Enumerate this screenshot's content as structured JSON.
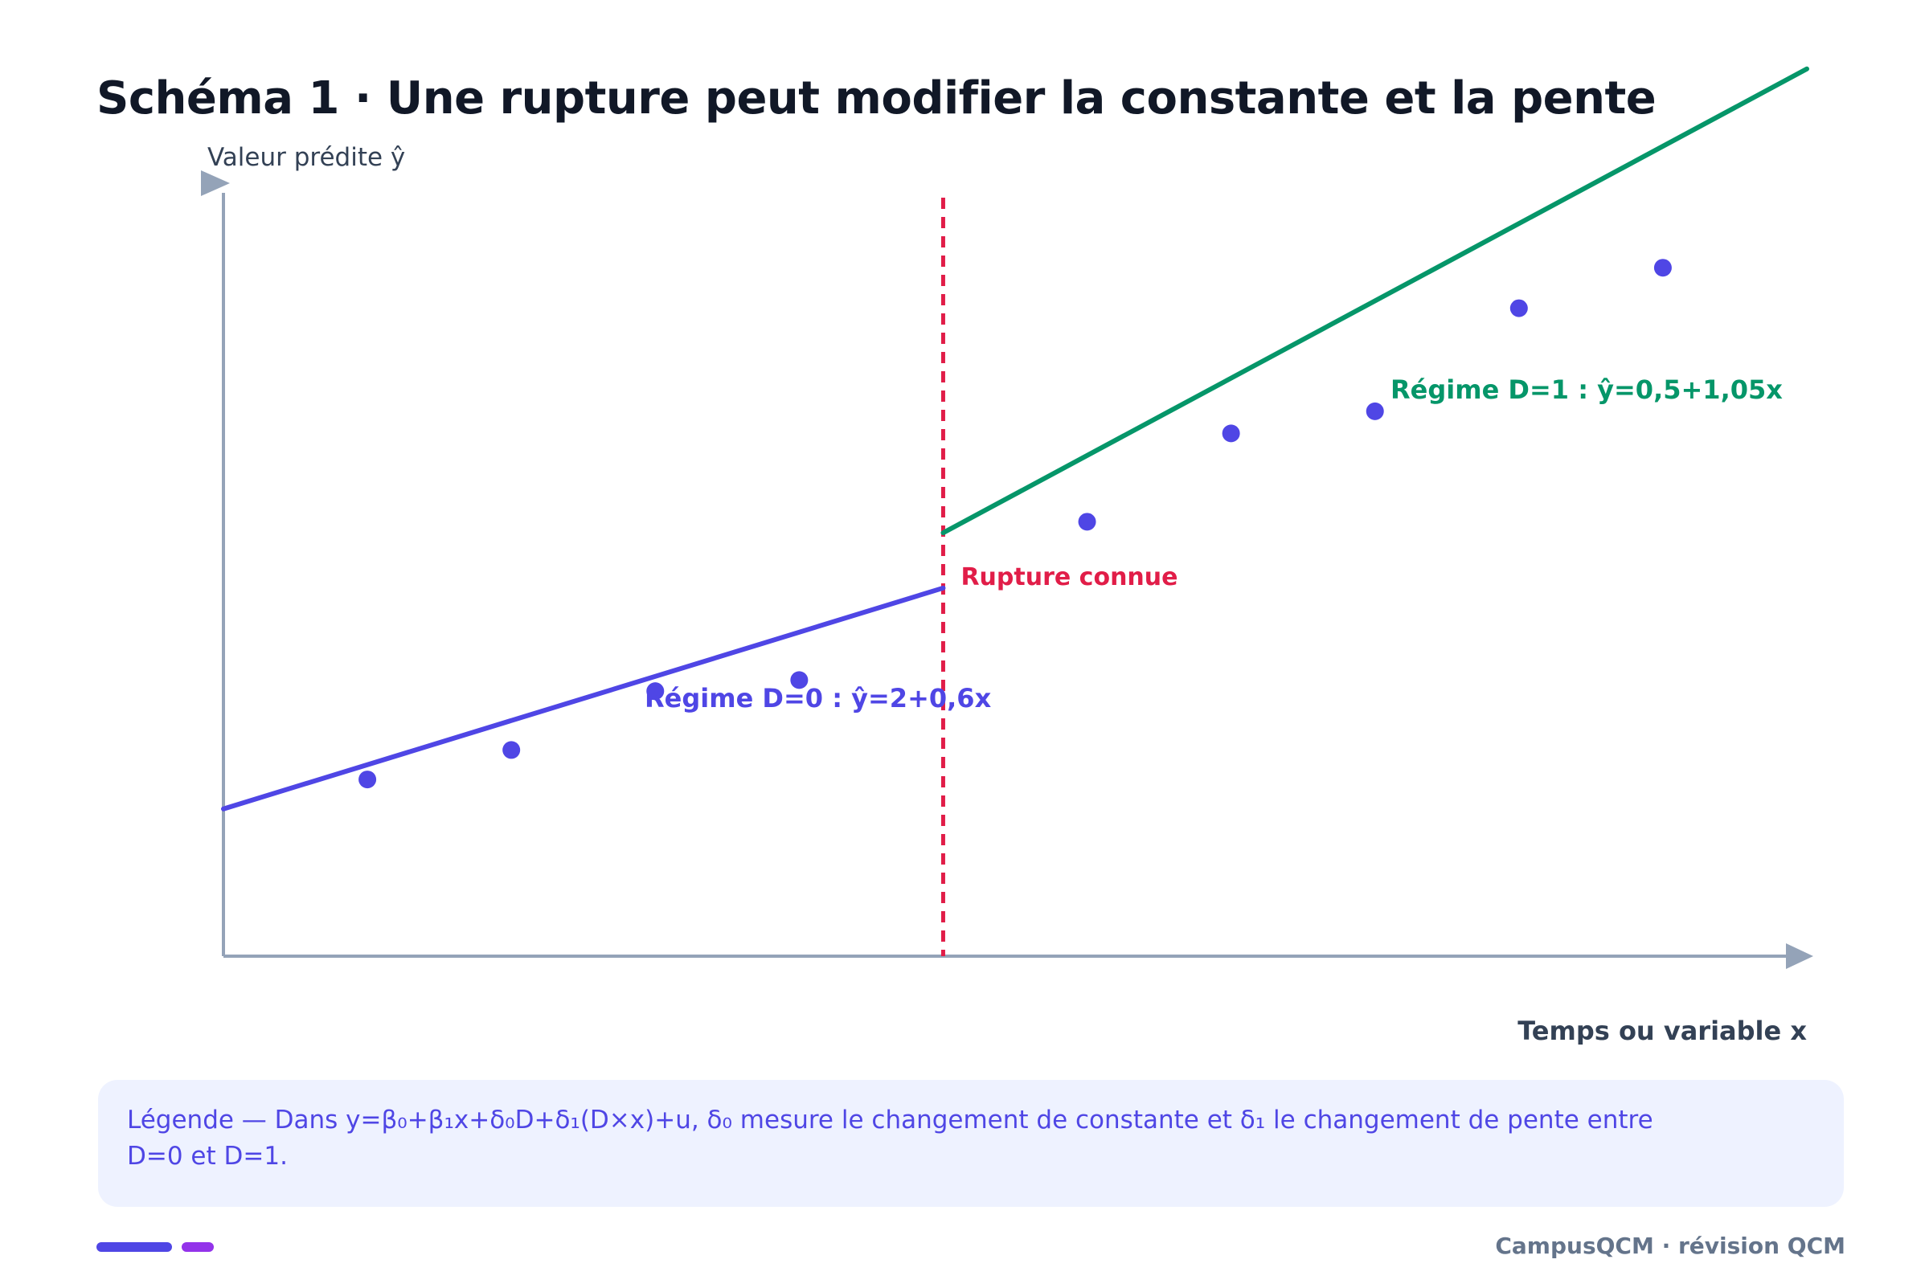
{
  "title": "Schéma 1 · Une rupture peut modifier la constante et la pente",
  "legend_text": "Légende — Dans y=β₀+β₁x+δ₀D+δ₁(D×x)+u, δ₀ mesure le changement de constante et δ₁ le changement de pente entre D=0 et D=1.",
  "footer": {
    "brand": "CampusQCM · révision QCM"
  },
  "colors": {
    "regime0": "#4f46e5",
    "regime1": "#059669",
    "break": "#e11d48",
    "axis": "#94a3b8",
    "points": "#4f46e5"
  },
  "chart_data": {
    "type": "line",
    "title": "Schéma 1 · Une rupture peut modifier la constante et la pente",
    "xlabel": "Temps ou variable x",
    "ylabel": "Valeur prédite ŷ",
    "xlim": [
      0,
      11
    ],
    "ylim": [
      0,
      11
    ],
    "grid": false,
    "break_x": 5,
    "break_label": "Rupture connue",
    "series": [
      {
        "name": "Régime D=0 : ŷ=2+0,6x",
        "x": [
          0,
          5
        ],
        "y": [
          2,
          5
        ]
      },
      {
        "name": "Régime D=1 : ŷ=0,5+1,05x",
        "x": [
          5,
          11
        ],
        "y": [
          5.75,
          12.05
        ]
      }
    ],
    "points": {
      "x": [
        1,
        2,
        3,
        4,
        6,
        7,
        8,
        9,
        10
      ],
      "y": [
        2.4,
        2.8,
        3.6,
        3.75,
        5.9,
        7.1,
        7.4,
        8.8,
        9.35
      ]
    }
  }
}
